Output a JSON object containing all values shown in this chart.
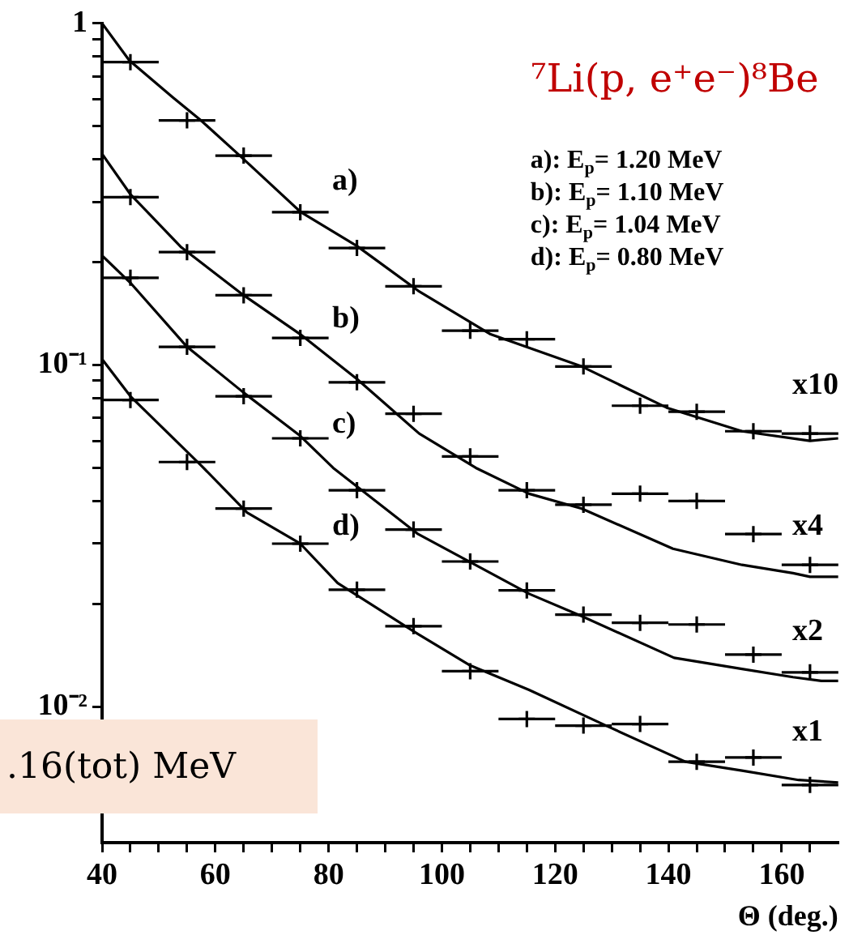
{
  "chart_data": {
    "type": "scatter",
    "title": "⁷Li(p, e⁺e⁻)⁸Be",
    "xlabel": "Θ (deg.)",
    "xlim": [
      40,
      170
    ],
    "xticks": [
      40,
      {
        "value": 45,
        "label": null
      },
      {
        "value": 50,
        "label": null
      },
      {
        "value": 55,
        "label": null
      },
      60,
      {
        "value": 65,
        "label": null
      },
      {
        "value": 70,
        "label": null
      },
      {
        "value": 75,
        "label": null
      },
      80,
      {
        "value": 85,
        "label": null
      },
      {
        "value": 90,
        "label": null
      },
      {
        "value": 95,
        "label": null
      },
      100,
      {
        "value": 105,
        "label": null
      },
      {
        "value": 110,
        "label": null
      },
      {
        "value": 115,
        "label": null
      },
      120,
      {
        "value": 125,
        "label": null
      },
      {
        "value": 130,
        "label": null
      },
      {
        "value": 135,
        "label": null
      },
      140,
      {
        "value": 145,
        "label": null
      },
      {
        "value": 150,
        "label": null
      },
      {
        "value": 155,
        "label": null
      },
      160,
      {
        "value": 165,
        "label": null
      }
    ],
    "ylim": [
      0.004,
      1
    ],
    "yticks": [
      1,
      {
        "value": 0.9,
        "label": null
      },
      {
        "value": 0.8,
        "label": null
      },
      {
        "value": 0.7,
        "label": null
      },
      {
        "value": 0.6,
        "label": null
      },
      {
        "value": 0.5,
        "label": null
      },
      {
        "value": 0.4,
        "label": null
      },
      {
        "value": 0.3,
        "label": null
      },
      {
        "value": 0.2,
        "label": null
      },
      {
        "value": 0.1,
        "label": "10⁻¹"
      },
      {
        "value": 0.09,
        "label": null
      },
      {
        "value": 0.08,
        "label": null
      },
      {
        "value": 0.07,
        "label": null
      },
      {
        "value": 0.06,
        "label": null
      },
      {
        "value": 0.05,
        "label": null
      },
      {
        "value": 0.04,
        "label": null
      },
      {
        "value": 0.03,
        "label": null
      },
      {
        "value": 0.02,
        "label": null
      },
      {
        "value": 0.01,
        "label": "10⁻²"
      },
      {
        "value": 0.009,
        "label": null
      },
      {
        "value": 0.008,
        "label": null
      },
      {
        "value": 0.007,
        "label": null
      },
      {
        "value": 0.006,
        "label": null
      },
      {
        "value": 0.005,
        "label": null
      }
    ],
    "log": "y",
    "grid": false,
    "legend": false,
    "series": [
      {
        "color": "#000000",
        "marker": "cross",
        "x": [
          45,
          55,
          65,
          75,
          85,
          95,
          105,
          115,
          125,
          135,
          145,
          155,
          165
        ],
        "values": [
          0.77,
          0.52,
          0.41,
          0.28,
          0.22,
          0.17,
          0.126,
          0.119,
          0.099,
          0.076,
          0.073,
          0.064,
          0.063
        ],
        "xerrors": [
          5,
          5,
          5,
          5,
          5,
          5,
          5,
          5,
          5,
          5,
          5,
          5,
          5
        ]
      },
      {
        "color": "#000000",
        "marker": "cross",
        "x": [
          45,
          55,
          65,
          75,
          85,
          95,
          105,
          115,
          125,
          135,
          145,
          155,
          165
        ],
        "values": [
          0.31,
          0.214,
          0.16,
          0.12,
          0.089,
          0.072,
          0.054,
          0.043,
          0.039,
          0.042,
          0.04,
          0.032,
          0.026
        ],
        "xerrors": [
          5,
          5,
          5,
          5,
          5,
          5,
          5,
          5,
          5,
          5,
          5,
          5,
          5
        ]
      },
      {
        "color": "#000000",
        "marker": "cross",
        "x": [
          45,
          55,
          65,
          75,
          85,
          95,
          105,
          115,
          125,
          135,
          145,
          155,
          165
        ],
        "values": [
          0.18,
          0.113,
          0.081,
          0.061,
          0.043,
          0.033,
          0.0266,
          0.0219,
          0.0186,
          0.0176,
          0.0174,
          0.0142,
          0.0126
        ],
        "xerrors": [
          5,
          5,
          5,
          5,
          5,
          5,
          5,
          5,
          5,
          5,
          5,
          5,
          5
        ]
      },
      {
        "color": "#000000",
        "marker": "cross",
        "x": [
          45,
          55,
          65,
          75,
          85,
          95,
          105,
          115,
          125,
          135,
          145,
          155,
          165
        ],
        "values": [
          0.079,
          0.052,
          0.038,
          0.03,
          0.022,
          0.0172,
          0.0127,
          0.0092,
          0.0088,
          0.0089,
          0.0069,
          0.0071,
          0.0059
        ],
        "xerrors": [
          5,
          5,
          5,
          5,
          5,
          5,
          5,
          5,
          5,
          5,
          5,
          5,
          5
        ]
      },
      {
        "type": "line",
        "color": "#000000",
        "marker": "none",
        "line_style": "solid",
        "x": [
          40,
          44.8,
          52.5,
          57.4,
          64.6,
          75,
          85,
          95.8,
          108.6,
          124.7,
          139.7,
          153,
          165,
          170
        ],
        "values": [
          1.0,
          0.779,
          0.607,
          0.521,
          0.406,
          0.281,
          0.223,
          0.165,
          0.123,
          0.099,
          0.075,
          0.064,
          0.06,
          0.061
        ]
      },
      {
        "type": "line",
        "color": "#000000",
        "marker": "none",
        "line_style": "solid",
        "x": [
          40,
          45,
          54,
          65,
          75,
          85,
          96,
          106,
          115.4,
          124.7,
          140.8,
          153,
          162,
          165,
          170
        ],
        "values": [
          0.415,
          0.316,
          0.221,
          0.16,
          0.123,
          0.091,
          0.063,
          0.05,
          0.042,
          0.038,
          0.029,
          0.026,
          0.0246,
          0.024,
          0.024
        ]
      },
      {
        "type": "line",
        "color": "#000000",
        "marker": "none",
        "line_style": "solid",
        "x": [
          40,
          45,
          55,
          65,
          75,
          80.8,
          95.8,
          115.4,
          124.7,
          141,
          153,
          162,
          167,
          170
        ],
        "values": [
          0.209,
          0.174,
          0.113,
          0.083,
          0.062,
          0.05,
          0.032,
          0.0214,
          0.0184,
          0.0139,
          0.0129,
          0.0122,
          0.0119,
          0.0119
        ]
      },
      {
        "type": "line",
        "color": "#000000",
        "marker": "none",
        "line_style": "solid",
        "x": [
          40,
          45,
          57.4,
          65.6,
          75,
          81.6,
          95.8,
          105,
          115.4,
          129,
          143,
          153,
          163,
          170
        ],
        "values": [
          0.104,
          0.081,
          0.051,
          0.037,
          0.03,
          0.023,
          0.0163,
          0.0132,
          0.0112,
          0.0088,
          0.0069,
          0.0065,
          0.0061,
          0.006
        ]
      }
    ],
    "annotations": [
      "a)",
      "b)",
      "c)",
      "d)",
      "x10",
      "x4",
      "x2",
      "x1",
      "a): E$_{p}$= 1.20 MeV",
      "b): E$_{p}$= 1.10 MeV",
      "c): E$_{p}$= 1.04 MeV",
      "d): E$_{p}$= 0.80 MeV",
      ".16(tot) MeV"
    ]
  }
}
